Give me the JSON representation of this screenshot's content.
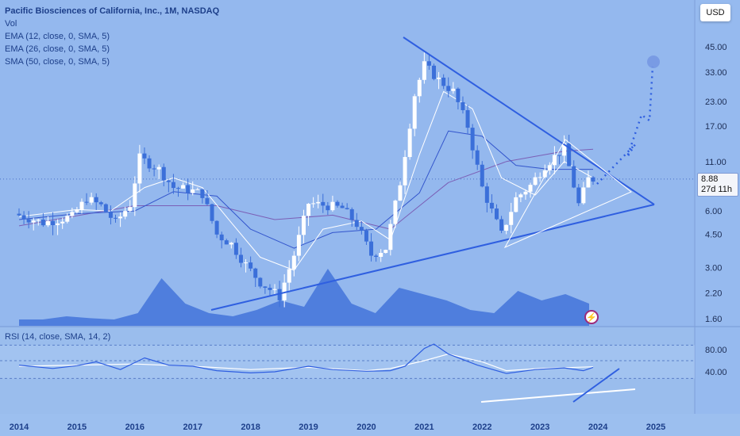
{
  "header": {
    "title": "Pacific Biosciences of California, Inc., 1M, NASDAQ",
    "indicators": [
      "Vol",
      "EMA (12, close, 0, SMA, 5)",
      "EMA (26, close, 0, SMA, 5)",
      "SMA (50, close, 0, SMA, 5)"
    ],
    "currency": "USD"
  },
  "price_tag": {
    "price": "8.88",
    "countdown": "27d 11h"
  },
  "rsi_panel": {
    "label": "RSI (14, close, SMA, 14, 2)"
  },
  "colors": {
    "background": "#94b8ee",
    "up": "#ffffff",
    "down": "#3b6fd9",
    "trendline": "#2f5fe0",
    "ema12": "#ffffff",
    "ema26": "#3355cc",
    "sma50": "#7b5fb6",
    "volume": "#3d6fd8",
    "rsi_line": "#2e5ee0",
    "rsi_ma": "#ffffff"
  },
  "chart_data": [
    {
      "type": "candlestick",
      "title": "Pacific Biosciences of California, Inc., 1M, NASDAQ",
      "y_scale": "log",
      "y_ticks": [
        "45.00",
        "33.00",
        "23.00",
        "17.00",
        "11.00",
        "6.00",
        "4.50",
        "3.00",
        "2.20",
        "1.60"
      ],
      "x_ticks": [
        "2014",
        "2015",
        "2016",
        "2017",
        "2018",
        "2019",
        "2020",
        "2021",
        "2022",
        "2023",
        "2024",
        "2025"
      ],
      "last_price": 8.88,
      "series": [
        {
          "name": "Price",
          "points": [
            [
              "2014",
              5.8
            ],
            [
              "2014-07",
              5.2
            ],
            [
              "2015",
              5.6
            ],
            [
              "2015-04",
              7.0
            ],
            [
              "2015-07",
              6.4
            ],
            [
              "2015-10",
              5.2
            ],
            [
              "2016",
              6.5
            ],
            [
              "2016-03",
              11.5
            ],
            [
              "2016-07",
              10.0
            ],
            [
              "2016-10",
              8.0
            ],
            [
              "2017",
              7.8
            ],
            [
              "2017-04",
              7.4
            ],
            [
              "2017-07",
              4.5
            ],
            [
              "2017-10",
              4.0
            ],
            [
              "2018",
              3.1
            ],
            [
              "2018-04",
              2.5
            ],
            [
              "2018-08",
              2.1
            ],
            [
              "2018-11",
              3.5
            ],
            [
              "2019-02",
              6.6
            ],
            [
              "2019-06",
              6.4
            ],
            [
              "2019-09",
              6.2
            ],
            [
              "2019-12",
              5.1
            ],
            [
              "2020-03",
              3.5
            ],
            [
              "2020-06",
              3.8
            ],
            [
              "2020-09",
              8.5
            ],
            [
              "2020-12",
              25.0
            ],
            [
              "2021-02",
              36.0
            ],
            [
              "2021-05",
              30.0
            ],
            [
              "2021-08",
              26.0
            ],
            [
              "2021-11",
              17.0
            ],
            [
              "2022-02",
              8.0
            ],
            [
              "2022-06",
              4.5
            ],
            [
              "2022-09",
              7.0
            ],
            [
              "2022-12",
              8.2
            ],
            [
              "2023-03",
              10.5
            ],
            [
              "2023-07",
              13.0
            ],
            [
              "2023-10",
              6.5
            ],
            [
              "2023-12",
              8.88
            ]
          ]
        },
        {
          "name": "EMA (12)",
          "points": [
            [
              "2014",
              5.6
            ],
            [
              "2015",
              6.1
            ],
            [
              "2015-08",
              6.0
            ],
            [
              "2016-03",
              8.0
            ],
            [
              "2016-09",
              9.0
            ],
            [
              "2017-03",
              8.0
            ],
            [
              "2017-09",
              5.2
            ],
            [
              "2018-03",
              3.4
            ],
            [
              "2018-10",
              2.9
            ],
            [
              "2019-04",
              4.8
            ],
            [
              "2019-12",
              5.3
            ],
            [
              "2020-06",
              4.2
            ],
            [
              "2020-12",
              12.0
            ],
            [
              "2021-05",
              26.0
            ],
            [
              "2021-11",
              21.0
            ],
            [
              "2022-05",
              9.0
            ],
            [
              "2022-12",
              7.3
            ],
            [
              "2023-06",
              11.0
            ],
            [
              "2023-12",
              9.0
            ]
          ]
        },
        {
          "name": "EMA (26)",
          "points": [
            [
              "2014",
              5.4
            ],
            [
              "2015",
              5.8
            ],
            [
              "2016",
              6.0
            ],
            [
              "2016-09",
              7.6
            ],
            [
              "2017-06",
              7.2
            ],
            [
              "2018-01",
              4.8
            ],
            [
              "2018-10",
              3.8
            ],
            [
              "2019-06",
              4.6
            ],
            [
              "2020-03",
              4.8
            ],
            [
              "2020-12",
              7.5
            ],
            [
              "2021-06",
              16.0
            ],
            [
              "2022-01",
              15.0
            ],
            [
              "2022-08",
              10.5
            ],
            [
              "2023-03",
              10.0
            ],
            [
              "2023-12",
              10.0
            ]
          ]
        },
        {
          "name": "SMA (50)",
          "points": [
            [
              "2014",
              5.0
            ],
            [
              "2016",
              6.4
            ],
            [
              "2017-06",
              6.4
            ],
            [
              "2018-06",
              5.4
            ],
            [
              "2019-06",
              5.7
            ],
            [
              "2020-06",
              4.8
            ],
            [
              "2021-06",
              8.5
            ],
            [
              "2022-06",
              11.0
            ],
            [
              "2023-06",
              12.5
            ],
            [
              "2023-12",
              12.8
            ]
          ]
        }
      ]
    },
    {
      "type": "bar",
      "title": "Vol",
      "series": [
        {
          "name": "Vol",
          "note": "relative",
          "values": [
            0.1,
            0.1,
            0.15,
            0.12,
            0.1,
            0.2,
            0.75,
            0.35,
            0.2,
            0.15,
            0.25,
            0.4,
            0.3,
            0.9,
            0.35,
            0.2,
            0.6,
            0.5,
            0.4,
            0.25,
            0.2,
            0.55,
            0.4,
            0.5,
            0.35
          ]
        }
      ]
    },
    {
      "type": "line",
      "title": "RSI (14, close, SMA, 14, 2)",
      "y_ticks": [
        "80.00",
        "40.00"
      ],
      "series": [
        {
          "name": "RSI",
          "points": [
            [
              "2014",
              52
            ],
            [
              "2014-08",
              46
            ],
            [
              "2015",
              51
            ],
            [
              "2015-05",
              58
            ],
            [
              "2015-10",
              44
            ],
            [
              "2016-03",
              65
            ],
            [
              "2016-08",
              52
            ],
            [
              "2017",
              50
            ],
            [
              "2017-06",
              42
            ],
            [
              "2018",
              38
            ],
            [
              "2018-06",
              40
            ],
            [
              "2019",
              50
            ],
            [
              "2019-06",
              44
            ],
            [
              "2020",
              41
            ],
            [
              "2020-06",
              42
            ],
            [
              "2020-09",
              50
            ],
            [
              "2021",
              82
            ],
            [
              "2021-03",
              90
            ],
            [
              "2021-06",
              72
            ],
            [
              "2021-12",
              52
            ],
            [
              "2022-06",
              37
            ],
            [
              "2022-12",
              44
            ],
            [
              "2023-06",
              47
            ],
            [
              "2023-10",
              42
            ],
            [
              "2023-12",
              48
            ]
          ]
        },
        {
          "name": "RSI SMA",
          "points": [
            [
              "2014",
              50
            ],
            [
              "2015",
              52
            ],
            [
              "2016",
              54
            ],
            [
              "2017",
              50
            ],
            [
              "2018",
              44
            ],
            [
              "2019",
              48
            ],
            [
              "2020",
              42
            ],
            [
              "2020-06",
              46
            ],
            [
              "2021",
              60
            ],
            [
              "2021-06",
              72
            ],
            [
              "2022",
              58
            ],
            [
              "2022-06",
              42
            ],
            [
              "2023",
              46
            ],
            [
              "2023-12",
              49
            ]
          ]
        }
      ]
    }
  ]
}
